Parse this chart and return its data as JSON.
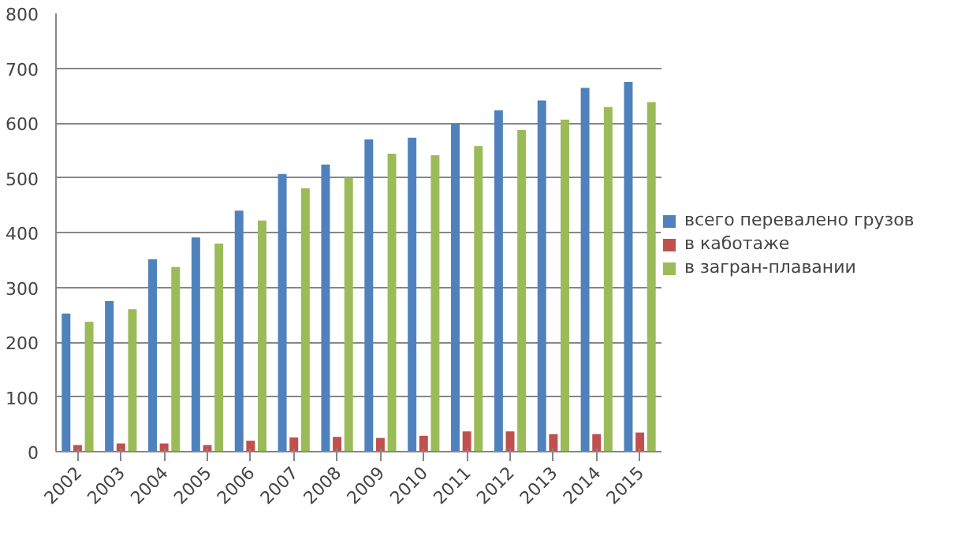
{
  "chart_data": {
    "type": "bar",
    "categories": [
      "2002",
      "2003",
      "2004",
      "2005",
      "2006",
      "2007",
      "2008",
      "2009",
      "2010",
      "2011",
      "2012",
      "2013",
      "2014",
      "2015"
    ],
    "series": [
      {
        "name": "всего перевалено грузов",
        "color": "#4f81bd",
        "values": [
          252,
          275,
          351,
          391,
          440,
          507,
          524,
          570,
          573,
          599,
          623,
          641,
          664,
          675
        ]
      },
      {
        "name": "в каботаже",
        "color": "#c0504d",
        "values": [
          12,
          15,
          15,
          12,
          20,
          26,
          27,
          25,
          29,
          37,
          37,
          32,
          32,
          35
        ]
      },
      {
        "name": "в загран-плавании",
        "color": "#9bbb59",
        "values": [
          237,
          260,
          337,
          380,
          422,
          481,
          500,
          544,
          541,
          558,
          587,
          606,
          629,
          638
        ]
      }
    ],
    "ylim": [
      0,
      800
    ],
    "yticks": [
      0,
      100,
      200,
      300,
      400,
      500,
      600,
      700,
      800
    ],
    "grid": "y",
    "legend": "right"
  }
}
